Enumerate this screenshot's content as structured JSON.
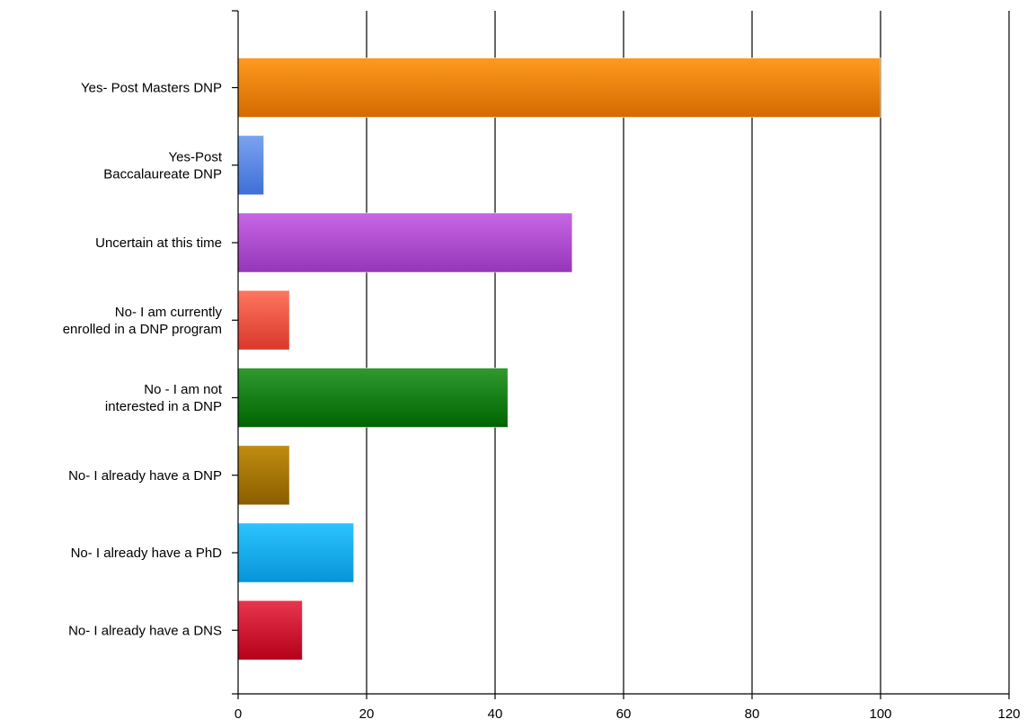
{
  "chart_data": {
    "type": "bar",
    "orientation": "horizontal",
    "title": "",
    "xlabel": "",
    "ylabel": "",
    "categories": [
      [
        "Yes- Post Masters DNP"
      ],
      [
        "Yes-Post",
        "Baccalaureate DNP"
      ],
      [
        "Uncertain at this time"
      ],
      [
        "No- I am currently",
        "enrolled in a DNP program"
      ],
      [
        "No - I am not",
        "interested in a DNP"
      ],
      [
        "No- I already have a DNP"
      ],
      [
        "No- I already have a PhD"
      ],
      [
        "No- I already have a DNS"
      ]
    ],
    "values": [
      100,
      4,
      52,
      8,
      42,
      8,
      18,
      10
    ],
    "colors": [
      [
        "#ff9a1f",
        "#d46a00"
      ],
      [
        "#7aa3f0",
        "#3f6fd6"
      ],
      [
        "#c766e6",
        "#9436b8"
      ],
      [
        "#ff7560",
        "#d8382a"
      ],
      [
        "#2f9a2f",
        "#006400"
      ],
      [
        "#c08c10",
        "#8a5e00"
      ],
      [
        "#2cc4ff",
        "#0794d8"
      ],
      [
        "#e8364f",
        "#b40018"
      ]
    ],
    "xlim": [
      0,
      120
    ],
    "xticks": [
      0,
      20,
      40,
      60,
      80,
      100,
      120
    ],
    "grid": true,
    "legend": "none"
  }
}
